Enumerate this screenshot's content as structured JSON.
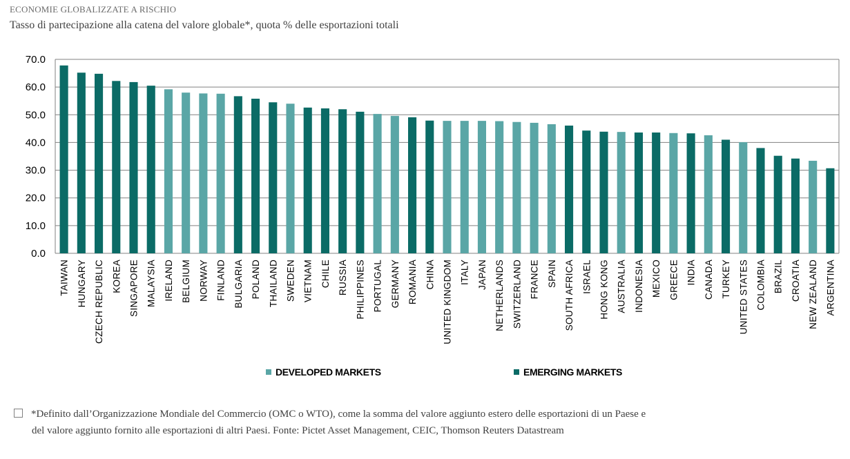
{
  "header": {
    "kicker": "ECONOMIE GLOBALIZZATE A RISCHIO",
    "subtitle": "Tasso di partecipazione alla catena del valore globale*, quota % delle esportazioni totali"
  },
  "footnote": {
    "line1": "*Definito dall’Organizzazione Mondiale del Commercio (OMC o WTO), come la somma del valore aggiunto estero delle esportazioni di un Paese e",
    "line2": "del valore aggiunto fornito alle esportazioni di altri Paesi. Fonte: Pictet Asset Management, CEIC, Thomson Reuters Datastream"
  },
  "colors": {
    "developed": "#5aa6a6",
    "emerging": "#0b6b66",
    "grid": "#808080",
    "text": "#000000"
  },
  "chart_data": {
    "type": "bar",
    "ylim": [
      0,
      70
    ],
    "ytick_step": 10,
    "ytick_labels": [
      "0.0",
      "10.0",
      "20.0",
      "30.0",
      "40.0",
      "50.0",
      "60.0",
      "70.0"
    ],
    "grid": true,
    "legend_position": "bottom",
    "legend": [
      {
        "key": "developed",
        "label": "DEVELOPED MARKETS"
      },
      {
        "key": "emerging",
        "label": "EMERGING MARKETS"
      }
    ],
    "categories": [
      "TAIWAN",
      "HUNGARY",
      "CZECH REPUBLIC",
      "KOREA",
      "SINGAPORE",
      "MALAYSIA",
      "IRELAND",
      "BELGIUM",
      "NORWAY",
      "FINLAND",
      "BULGARIA",
      "POLAND",
      "THAILAND",
      "SWEDEN",
      "VIETNAM",
      "CHILE",
      "RUSSIA",
      "PHILIPPINES",
      "PORTUGAL",
      "GERMANY",
      "ROMANIA",
      "CHINA",
      "UNITED KINGDOM",
      "ITALY",
      "JAPAN",
      "NETHERLANDS",
      "SWITZERLAND",
      "FRANCE",
      "SPAIN",
      "SOUTH AFRICA",
      "ISRAEL",
      "HONG KONG",
      "AUSTRALIA",
      "INDONESIA",
      "MEXICO",
      "GREECE",
      "INDIA",
      "CANADA",
      "TURKEY",
      "UNITED STATES",
      "COLOMBIA",
      "BRAZIL",
      "CROATIA",
      "NEW ZEALAND",
      "ARGENTINA"
    ],
    "values": [
      67.8,
      65.2,
      64.8,
      62.2,
      61.8,
      60.5,
      59.2,
      58.0,
      57.7,
      57.6,
      56.7,
      55.8,
      54.5,
      54.0,
      52.6,
      52.3,
      52.0,
      51.1,
      50.3,
      49.6,
      49.1,
      47.9,
      47.8,
      47.8,
      47.8,
      47.7,
      47.4,
      47.1,
      46.6,
      46.1,
      44.3,
      43.9,
      43.8,
      43.6,
      43.6,
      43.4,
      43.3,
      42.6,
      41.0,
      40.1,
      38.0,
      35.2,
      34.2,
      33.4,
      30.7
    ],
    "groups": [
      "emerging",
      "emerging",
      "emerging",
      "emerging",
      "emerging",
      "emerging",
      "developed",
      "developed",
      "developed",
      "developed",
      "emerging",
      "emerging",
      "emerging",
      "developed",
      "emerging",
      "emerging",
      "emerging",
      "emerging",
      "developed",
      "developed",
      "emerging",
      "emerging",
      "developed",
      "developed",
      "developed",
      "developed",
      "developed",
      "developed",
      "developed",
      "emerging",
      "emerging",
      "emerging",
      "developed",
      "emerging",
      "emerging",
      "developed",
      "emerging",
      "developed",
      "emerging",
      "developed",
      "emerging",
      "emerging",
      "emerging",
      "developed",
      "emerging"
    ]
  }
}
